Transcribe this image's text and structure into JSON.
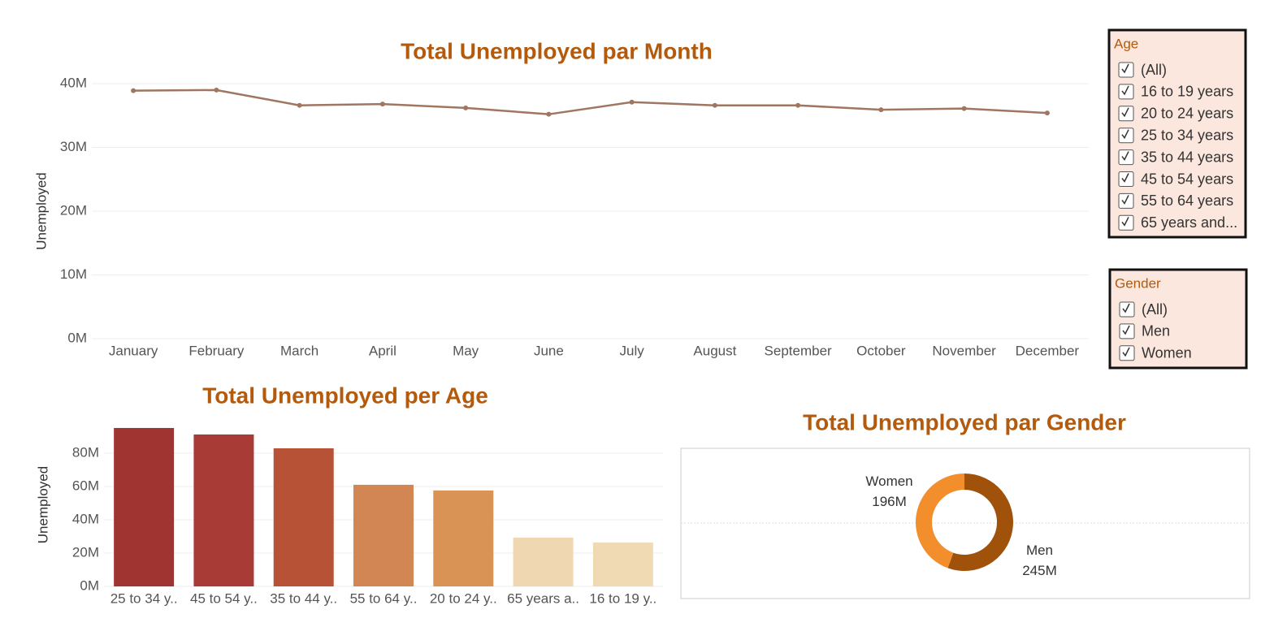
{
  "chart_data": [
    {
      "type": "line",
      "title": "Total Unemployed par Month",
      "y_label": "Unemployed",
      "categories": [
        "January",
        "February",
        "March",
        "April",
        "May",
        "June",
        "July",
        "August",
        "September",
        "October",
        "November",
        "December"
      ],
      "values": [
        38900000,
        39000000,
        36600000,
        36800000,
        36200000,
        35200000,
        37100000,
        36600000,
        36600000,
        35900000,
        36100000,
        35400000
      ],
      "color": "#a07660",
      "ylim": [
        0,
        40000000
      ],
      "yticks": [
        {
          "value": 0,
          "label": "0M"
        },
        {
          "value": 10000000,
          "label": "10M"
        },
        {
          "value": 20000000,
          "label": "20M"
        },
        {
          "value": 30000000,
          "label": "30M"
        },
        {
          "value": 40000000,
          "label": "40M"
        }
      ],
      "grid": true
    },
    {
      "type": "bar",
      "title": "Total Unemployed per Age",
      "y_label": "Unemployed",
      "categories": [
        "25 to 34 y..",
        "45 to 54 y..",
        "35 to 44 y..",
        "55 to 64 y..",
        "20 to 24 y..",
        "65 years a..",
        "16 to 19 y.."
      ],
      "values": [
        95100000,
        91200000,
        82900000,
        61000000,
        57600000,
        29300000,
        26300000
      ],
      "colors": [
        "#a03431",
        "#a83b35",
        "#b75236",
        "#d18653",
        "#d99355",
        "#efd7b1",
        "#f0dab3"
      ],
      "ylim": [
        0,
        98000000
      ],
      "yticks": [
        {
          "value": 0,
          "label": "0M"
        },
        {
          "value": 20000000,
          "label": "20M"
        },
        {
          "value": 40000000,
          "label": "40M"
        },
        {
          "value": 60000000,
          "label": "60M"
        },
        {
          "value": 80000000,
          "label": "80M"
        }
      ],
      "grid": true
    },
    {
      "type": "pie",
      "title": "Total Unemployed par Gender",
      "categories": [
        "Men",
        "Women"
      ],
      "values": [
        245000000,
        196000000
      ],
      "value_labels": [
        "245M",
        "196M"
      ],
      "colors": [
        "#a0520a",
        "#f28e2b"
      ]
    }
  ],
  "filters": [
    {
      "title": "Age",
      "options": [
        "(All)",
        "16 to 19 years",
        "20 to 24 years",
        "25 to 34 years",
        "35 to 44 years",
        "45 to 54 years",
        "55 to 64 years",
        "65 years and..."
      ]
    },
    {
      "title": "Gender",
      "options": [
        "(All)",
        "Men",
        "Women"
      ]
    }
  ]
}
